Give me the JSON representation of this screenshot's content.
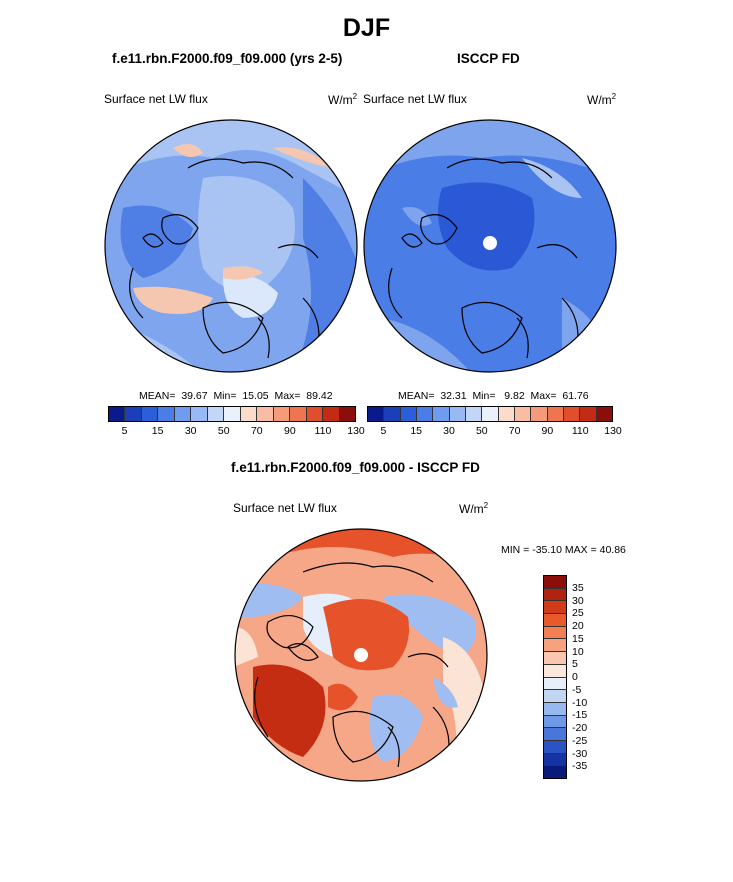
{
  "title": "DJF",
  "panels": [
    {
      "title": "f.e11.rbn.F2000.f09_f09.000 (yrs 2-5)",
      "variable": "Surface net LW flux",
      "units": "W/m",
      "units_sup": "2",
      "stats": {
        "mean_label": "MEAN=",
        "mean": "39.67",
        "min_label": "Min=",
        "min": "15.05",
        "max_label": "Max=",
        "max": "89.42"
      }
    },
    {
      "title": "ISCCP FD",
      "variable": "Surface net LW flux",
      "units": "W/m",
      "units_sup": "2",
      "stats": {
        "mean_label": "MEAN=",
        "mean": "32.31",
        "min_label": "Min=",
        "min": "9.82",
        "max_label": "Max=",
        "max": "61.76"
      }
    }
  ],
  "diff_panel": {
    "title": "f.e11.rbn.F2000.f09_f09.000 - ISCCP FD",
    "variable": "Surface net LW flux",
    "units": "W/m",
    "units_sup": "2",
    "minmax": "MIN = -35.10 MAX =  40.86"
  },
  "colorbar_abs": {
    "colors": [
      "#0a1a8c",
      "#1a3fb8",
      "#2b5fd9",
      "#4a7de6",
      "#6f9bf0",
      "#98b9f4",
      "#c3d6f7",
      "#eaf1fb",
      "#fbdccb",
      "#f9bda3",
      "#f59b7a",
      "#ee7550",
      "#e04e2c",
      "#c42a14",
      "#8b0e0a"
    ],
    "ticks": [
      "5",
      "15",
      "30",
      "50",
      "70",
      "90",
      "110",
      "130"
    ]
  },
  "colorbar_diff": {
    "colors": [
      "#8b0e0a",
      "#b22211",
      "#d13b18",
      "#e85a2a",
      "#f27e52",
      "#f7a27f",
      "#fbc6ad",
      "#fde6da",
      "#e7f0fa",
      "#c2d6f3",
      "#98b8ee",
      "#6f98e6",
      "#4a76d9",
      "#2b53c3",
      "#1633a3",
      "#0a1a7a"
    ],
    "ticks": [
      "35",
      "30",
      "25",
      "20",
      "15",
      "10",
      "5",
      "0",
      "-5",
      "-10",
      "-15",
      "-20",
      "-25",
      "-30",
      "-35"
    ]
  },
  "map_colors": {
    "panel1": {
      "base": "#7fa5ee",
      "light": "#a9c4f3",
      "deep": "#4f7ee4",
      "warm": "#f6c7b0",
      "pale": "#dbe7fa"
    },
    "panel2": {
      "base": "#4a7de6",
      "light": "#7fa4ee",
      "deep": "#2b59d6",
      "pale": "#a9c4f3"
    },
    "panel3": {
      "base": "#f5a788",
      "red": "#e6522a",
      "deepred": "#c52d12",
      "blue": "#9fbdf0",
      "pale": "#fbe3d6",
      "white": "#f3f5fb"
    }
  }
}
